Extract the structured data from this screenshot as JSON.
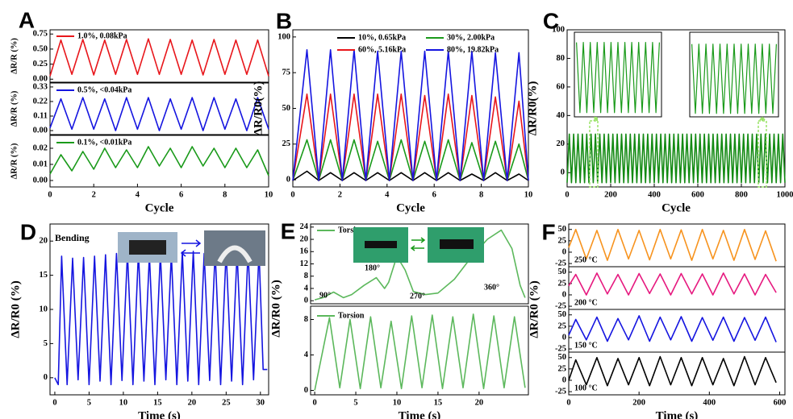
{
  "chart_data": [
    {
      "type": "line",
      "panel": "A",
      "ylabel": "ΔR/R (%)",
      "xlim": [
        0,
        10
      ],
      "ylim": [
        -0.05,
        0.82
      ],
      "yticks": [
        {
          "value": 0,
          "label": "0.00"
        },
        0.25,
        {
          "value": 0.5,
          "label": "0.50"
        },
        0.75
      ],
      "x": [
        0,
        0.5,
        1,
        1.5,
        2,
        2.5,
        3,
        3.5,
        4,
        4.5,
        5,
        5.5,
        6,
        6.5,
        7,
        7.5,
        8,
        8.5,
        9,
        9.5,
        10
      ],
      "series": [
        {
          "name": "1.0%, 0.08kPa",
          "color": "#e8161b",
          "values": [
            0.05,
            0.65,
            0.08,
            0.66,
            0.07,
            0.65,
            0.08,
            0.66,
            0.08,
            0.67,
            0.08,
            0.66,
            0.08,
            0.65,
            0.07,
            0.66,
            0.08,
            0.65,
            0.08,
            0.65,
            0.05
          ]
        }
      ]
    },
    {
      "type": "line",
      "ylabel": "ΔR/R (%)",
      "xlim": [
        0,
        10
      ],
      "ylim": [
        -0.03,
        0.36
      ],
      "yticks": [
        {
          "value": 0,
          "label": "0.00"
        },
        0.11,
        0.22,
        0.33
      ],
      "x": [
        0,
        0.5,
        1,
        1.5,
        2,
        2.5,
        3,
        3.5,
        4,
        4.5,
        5,
        5.5,
        6,
        6.5,
        7,
        7.5,
        8,
        8.5,
        9,
        9.5,
        10
      ],
      "series": [
        {
          "name": "0.5%, <0.04kPa",
          "color": "#1515e0",
          "values": [
            0.02,
            0.24,
            0.01,
            0.25,
            0.01,
            0.24,
            0,
            0.25,
            0.01,
            0.25,
            0,
            0.24,
            0.01,
            0.25,
            0,
            0.25,
            0.01,
            0.24,
            0,
            0.25,
            0.01
          ]
        }
      ]
    },
    {
      "type": "line",
      "ylabel": "ΔR/R (%)",
      "xlabel": "Cycle",
      "xlim": [
        0,
        10
      ],
      "ylim": [
        -0.004,
        0.028
      ],
      "yticks": [
        {
          "value": 0,
          "label": "0.00"
        },
        0.01,
        0.02
      ],
      "xticks": [
        0,
        2,
        4,
        6,
        8,
        10
      ],
      "x": [
        0,
        0.5,
        1,
        1.5,
        2,
        2.5,
        3,
        3.5,
        4,
        4.5,
        5,
        5.5,
        6,
        6.5,
        7,
        7.5,
        8,
        8.5,
        9,
        9.5,
        10
      ],
      "series": [
        {
          "name": "0.1%, <0.01kPa",
          "color": "#1a9a1a",
          "values": [
            0.004,
            0.016,
            0.006,
            0.018,
            0.007,
            0.02,
            0.008,
            0.019,
            0.008,
            0.021,
            0.009,
            0.02,
            0.008,
            0.021,
            0.009,
            0.02,
            0.008,
            0.02,
            0.008,
            0.019,
            0.003
          ]
        }
      ]
    },
    {
      "type": "line",
      "panel": "B",
      "ylabel": "ΔR/R0(%)",
      "xlabel": "Cycle",
      "xlim": [
        0,
        10
      ],
      "ylim": [
        -5,
        105
      ],
      "yticks": [
        0,
        25,
        50,
        75,
        100
      ],
      "xticks": [
        0,
        2,
        4,
        6,
        8,
        10
      ],
      "x": [
        0,
        0.6,
        1.1,
        1.6,
        2.1,
        2.6,
        3.1,
        3.6,
        4.1,
        4.6,
        5.1,
        5.6,
        6.1,
        6.6,
        7.1,
        7.6,
        8.1,
        8.6,
        9.1,
        9.6,
        10
      ],
      "series": [
        {
          "name": "10%, 0.65kPa",
          "color": "#000000",
          "values": [
            -0.5,
            6,
            -0.5,
            5,
            -0.5,
            5,
            -0.5,
            5,
            -0.5,
            5,
            -0.5,
            5,
            -0.5,
            5,
            -0.5,
            4,
            -0.5,
            5,
            -0.5,
            4,
            -0.5
          ]
        },
        {
          "name": "30%, 2.00kPa",
          "color": "#1a9a1a",
          "values": [
            -0.5,
            28,
            -0.5,
            28,
            -0.5,
            28,
            -0.5,
            27,
            -0.5,
            28,
            -0.5,
            27,
            -0.5,
            28,
            -0.5,
            26,
            -0.5,
            27,
            -0.5,
            25,
            -0.5
          ]
        },
        {
          "name": "60%, 5.16kPa",
          "color": "#e8161b",
          "values": [
            -0.5,
            60,
            -0.5,
            60,
            -0.5,
            60,
            -0.5,
            60,
            -0.5,
            60,
            -0.5,
            59,
            -0.5,
            60,
            -0.5,
            59,
            -0.5,
            58,
            -0.5,
            55,
            -0.5
          ]
        },
        {
          "name": "80%, 19.82kPa",
          "color": "#1515e0",
          "values": [
            -0.5,
            91,
            -0.5,
            91,
            -0.5,
            91,
            -0.5,
            90,
            -0.5,
            90,
            -0.5,
            90,
            -0.5,
            90,
            -0.5,
            90,
            -0.5,
            89,
            -0.5,
            89,
            -0.5
          ]
        }
      ]
    },
    {
      "type": "line",
      "panel": "C",
      "ylabel": "ΔR/R0(%)",
      "xlabel": "Cycle",
      "xlim": [
        0,
        1000
      ],
      "ylim": [
        -10,
        100
      ],
      "yticks": [
        0,
        20,
        40,
        60,
        80,
        100
      ],
      "xticks": [
        0,
        200,
        400,
        600,
        800,
        1000
      ],
      "x": [
        0,
        10,
        20,
        30,
        40,
        50,
        60,
        70,
        80,
        90,
        100,
        110,
        120,
        130,
        140,
        150,
        160,
        170,
        180,
        190,
        200,
        210,
        220,
        230,
        240,
        250,
        260,
        270,
        280,
        290,
        300,
        310,
        320,
        330,
        340,
        350,
        360,
        370,
        380,
        390,
        400,
        410,
        420,
        430,
        440,
        450,
        460,
        470,
        480,
        490,
        500,
        510,
        520,
        530,
        540,
        550,
        560,
        570,
        580,
        590,
        600,
        610,
        620,
        630,
        640,
        650,
        660,
        670,
        680,
        690,
        700,
        710,
        720,
        730,
        740,
        750,
        760,
        770,
        780,
        790,
        800,
        810,
        820,
        830,
        840,
        850,
        860,
        870,
        880,
        890,
        900,
        910,
        920,
        930,
        940,
        950,
        960,
        970,
        980,
        990,
        1000
      ],
      "series": [
        {
          "color": "#138a13",
          "values": [
            -7,
            27,
            -7,
            27,
            -7,
            27,
            -7,
            27,
            -7,
            27,
            -7,
            27,
            -7,
            27,
            -7,
            27,
            -7,
            27,
            -7,
            27,
            -7,
            27,
            -7,
            27,
            -7,
            27,
            -7,
            27,
            -7,
            27,
            -7,
            27,
            -7,
            27,
            -7,
            27,
            -7,
            27,
            -7,
            27,
            -7,
            27,
            -7,
            27,
            -7,
            27,
            -7,
            27,
            -7,
            27,
            -7,
            27,
            -7,
            27,
            -7,
            27,
            -7,
            27,
            -7,
            27,
            -7,
            27,
            -7,
            27,
            -7,
            27,
            -7,
            27,
            -7,
            27,
            -7,
            27,
            -7,
            27,
            -7,
            27,
            -7,
            27,
            -7,
            27,
            -7,
            27,
            -7,
            27,
            -7,
            27,
            -7,
            27,
            -7,
            27,
            -7,
            27,
            -7,
            27,
            -7,
            27,
            -7,
            27,
            -7,
            27,
            -7
          ]
        }
      ]
    },
    {
      "type": "line",
      "xlim": [
        -0.3,
        12.3
      ],
      "ylim": [
        0,
        100
      ],
      "x": [
        0,
        0.5,
        1,
        1.5,
        2,
        2.5,
        3,
        3.5,
        4,
        4.5,
        5,
        5.5,
        6,
        6.5,
        7,
        7.5,
        8,
        8.5,
        9,
        9.5,
        10,
        10.5,
        11,
        11.5,
        12
      ],
      "series": [
        {
          "color": "#1a9a1a",
          "values": [
            88,
            5,
            88,
            5,
            88,
            5,
            88,
            5,
            88,
            5,
            88,
            5,
            88,
            5,
            88,
            5,
            88,
            5,
            88,
            5,
            88,
            5,
            88,
            5,
            88
          ]
        }
      ]
    },
    {
      "type": "line",
      "xlim": [
        -0.3,
        12.3
      ],
      "ylim": [
        0,
        100
      ],
      "x": [
        0,
        0.5,
        1,
        1.5,
        2,
        2.5,
        3,
        3.5,
        4,
        4.5,
        5,
        5.5,
        6,
        6.5,
        7,
        7.5,
        8,
        8.5,
        9,
        9.5,
        10,
        10.5,
        11,
        11.5,
        12
      ],
      "series": [
        {
          "color": "#1a9a1a",
          "values": [
            86,
            4,
            86,
            4,
            86,
            4,
            86,
            4,
            86,
            4,
            86,
            4,
            86,
            4,
            86,
            4,
            86,
            4,
            86,
            4,
            86,
            4,
            86,
            4,
            86
          ]
        }
      ]
    },
    {
      "type": "line",
      "panel": "D",
      "annotations": [
        "Bending"
      ],
      "ylabel": "ΔR/R0 (%)",
      "xlabel": "Time (s)",
      "xlim": [
        -0.7,
        31.2
      ],
      "ylim": [
        -2.5,
        22.5
      ],
      "yticks": [
        0,
        5,
        10,
        15,
        20
      ],
      "xticks": [
        0,
        5,
        10,
        15,
        20,
        25,
        30
      ],
      "x": [
        0,
        0.5,
        1,
        1.8,
        2.6,
        3.4,
        4.2,
        5,
        5.8,
        6.6,
        7.4,
        8.2,
        9,
        9.8,
        10.6,
        11.4,
        12.2,
        13,
        13.8,
        14.6,
        15.4,
        16.2,
        17,
        17.8,
        18.6,
        19.4,
        20.2,
        21,
        21.8,
        22.6,
        23.4,
        24.2,
        25,
        25.8,
        26.6,
        27.4,
        28.2,
        29,
        29.8,
        30.4,
        31
      ],
      "series": [
        {
          "color": "#1515e0",
          "values": [
            0,
            -1,
            17.8,
            -1,
            17.5,
            -0.3,
            17.6,
            -1,
            17.8,
            -0.5,
            18,
            -1,
            18.2,
            -0.4,
            18.3,
            -1,
            18.4,
            -0.5,
            18,
            -1,
            18.2,
            -0.3,
            18.1,
            -1,
            18.4,
            -0.5,
            18.5,
            -1,
            18.2,
            -0.4,
            18.5,
            -1,
            18.6,
            -0.5,
            18.4,
            -1,
            18.6,
            -0.3,
            18.5,
            1.2,
            1.2
          ]
        }
      ]
    },
    {
      "type": "line",
      "panel": "E",
      "annotations": [
        "90°",
        "180°",
        "270°",
        "360°"
      ],
      "ylabel": "ΔR/R0 (%)",
      "xlim": [
        -0.5,
        26
      ],
      "ylim": [
        -1,
        25
      ],
      "yticks": [
        0,
        4,
        8,
        12,
        16,
        20,
        24
      ],
      "x": [
        0,
        1,
        2.3,
        3.5,
        4.5,
        6,
        7.5,
        8.5,
        9,
        10,
        11,
        12,
        13.5,
        15,
        17,
        19,
        21,
        22.7,
        24,
        25,
        25.6
      ],
      "series": [
        {
          "name": "Torsion",
          "color": "#5cb85c",
          "values": [
            0.3,
            1,
            2.8,
            1,
            2,
            5,
            7.5,
            4,
            6,
            14.5,
            10,
            3,
            2,
            2.5,
            7,
            14,
            20,
            23,
            17,
            5,
            1
          ]
        }
      ]
    },
    {
      "type": "line",
      "xlabel": "Time (s)",
      "xlim": [
        -0.5,
        26
      ],
      "ylim": [
        -0.5,
        9.5
      ],
      "yticks": [
        0,
        4,
        8
      ],
      "xticks": [
        0,
        5,
        10,
        15,
        20
      ],
      "x": [
        0,
        1.8,
        3.05,
        4.3,
        5.55,
        6.8,
        8.05,
        9.3,
        10.55,
        11.8,
        13.05,
        14.3,
        15.55,
        16.8,
        18.05,
        19.3,
        20.55,
        21.8,
        23.05,
        24.3,
        25.6
      ],
      "series": [
        {
          "name": "Torsion",
          "color": "#5cb85c",
          "values": [
            0,
            8.2,
            0.3,
            8,
            0.2,
            8.3,
            0.3,
            7.8,
            0.2,
            8.4,
            0.3,
            8.5,
            0.2,
            8.3,
            0.3,
            8.6,
            0.2,
            8.4,
            0.3,
            8.3,
            0.3
          ]
        }
      ]
    },
    {
      "type": "line",
      "panel": "F",
      "annotations": [
        "250 °C"
      ],
      "xlim": [
        0,
        615
      ],
      "ylim": [
        -32,
        62
      ],
      "yticks": [
        -25,
        0,
        25,
        50
      ],
      "x": [
        0,
        20,
        50,
        80,
        110,
        140,
        170,
        200,
        230,
        260,
        290,
        320,
        350,
        380,
        410,
        440,
        470,
        500,
        530,
        560,
        590
      ],
      "series": [
        {
          "color": "#f7931e",
          "values": [
            10,
            50,
            -15,
            48,
            -18,
            50,
            -15,
            48,
            -17,
            50,
            -15,
            49,
            -18,
            50,
            -15,
            48,
            -18,
            50,
            -16,
            47,
            -20
          ]
        }
      ]
    },
    {
      "type": "line",
      "annotations": [
        "200 °C"
      ],
      "xlim": [
        0,
        615
      ],
      "ylim": [
        -32,
        62
      ],
      "yticks": [
        -25,
        0,
        25,
        50
      ],
      "x": [
        0,
        20,
        50,
        80,
        110,
        140,
        170,
        200,
        230,
        260,
        290,
        320,
        350,
        380,
        410,
        440,
        470,
        500,
        530,
        560,
        590
      ],
      "series": [
        {
          "color": "#e6197f",
          "values": [
            20,
            45,
            0,
            48,
            2,
            45,
            0,
            47,
            3,
            46,
            0,
            47,
            2,
            46,
            0,
            48,
            2,
            46,
            0,
            45,
            5
          ]
        }
      ]
    },
    {
      "type": "line",
      "annotations": [
        "150 °C"
      ],
      "ylabel": "ΔR/R0 (%)",
      "xlim": [
        0,
        615
      ],
      "ylim": [
        -32,
        62
      ],
      "yticks": [
        -25,
        0,
        25,
        50
      ],
      "x": [
        0,
        20,
        50,
        80,
        110,
        140,
        170,
        200,
        230,
        260,
        290,
        320,
        350,
        380,
        410,
        440,
        470,
        500,
        530,
        560,
        590
      ],
      "series": [
        {
          "color": "#1515e0",
          "values": [
            5,
            40,
            -5,
            45,
            -8,
            42,
            -5,
            48,
            -8,
            45,
            -5,
            46,
            -8,
            44,
            -6,
            45,
            -8,
            44,
            -6,
            45,
            -10
          ]
        }
      ]
    },
    {
      "type": "line",
      "annotations": [
        "100 °C"
      ],
      "xlabel": "Time (s)",
      "xlim": [
        0,
        615
      ],
      "ylim": [
        -32,
        62
      ],
      "yticks": [
        -25,
        0,
        25,
        50
      ],
      "xticks": [
        0,
        200,
        400,
        600
      ],
      "x": [
        0,
        20,
        50,
        80,
        110,
        140,
        170,
        200,
        230,
        260,
        290,
        320,
        350,
        380,
        410,
        440,
        470,
        500,
        530,
        560,
        590
      ],
      "series": [
        {
          "color": "#000000",
          "values": [
            0,
            45,
            -10,
            50,
            -12,
            48,
            -10,
            50,
            -12,
            52,
            -10,
            50,
            -12,
            50,
            -10,
            48,
            -12,
            52,
            -10,
            50,
            -5
          ]
        }
      ]
    }
  ]
}
